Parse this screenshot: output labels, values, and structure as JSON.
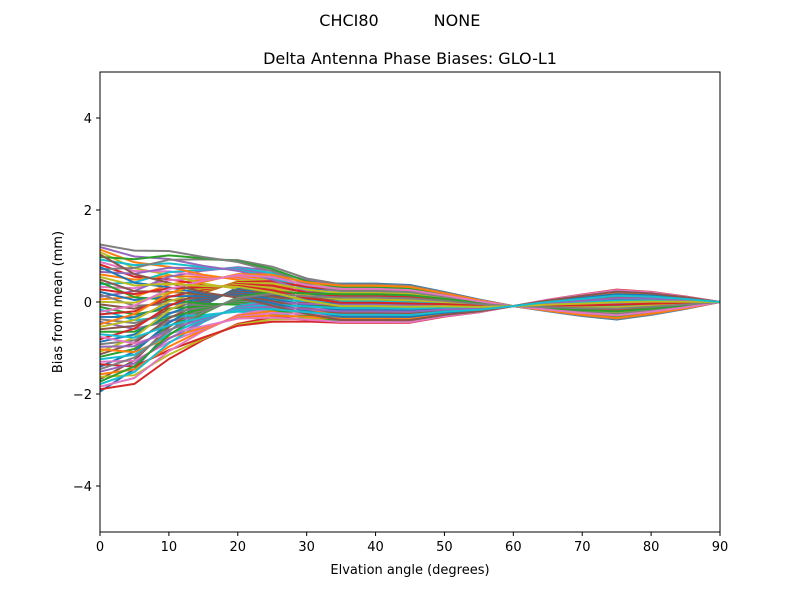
{
  "figure": {
    "suptitle_left": "CHCI80",
    "suptitle_right": "NONE"
  },
  "chart_data": {
    "type": "line",
    "title": "Delta Antenna Phase Biases: GLO-L1",
    "xlabel": "Elvation angle (degrees)",
    "ylabel": "Bias from mean (mm)",
    "xlim": [
      0,
      90
    ],
    "ylim": [
      -5,
      5
    ],
    "xticks": [
      0,
      10,
      20,
      30,
      40,
      50,
      60,
      70,
      80,
      90
    ],
    "yticks": [
      -4,
      -2,
      0,
      2,
      4
    ],
    "ytick_labels": [
      "−4",
      "−2",
      "0",
      "2",
      "4"
    ],
    "grid": false,
    "legend": null,
    "x": [
      0,
      5,
      10,
      15,
      20,
      25,
      30,
      35,
      40,
      45,
      50,
      55,
      60,
      65,
      70,
      75,
      80,
      85,
      90
    ],
    "series_count": 60,
    "palette": [
      "#1f77b4",
      "#ff7f0e",
      "#2ca02c",
      "#d62728",
      "#9467bd",
      "#8c564b",
      "#e377c2",
      "#7f7f7f",
      "#bcbd22",
      "#17becf"
    ],
    "envelope": {
      "upper": [
        1.25,
        1.2,
        1.25,
        1.15,
        1.05,
        0.85,
        0.55,
        0.4,
        0.4,
        0.37,
        0.35,
        0.33,
        0.32,
        0.3,
        0.28,
        0.27,
        0.22,
        0.12,
        0.0
      ],
      "lower": [
        -1.95,
        -1.9,
        -1.4,
        -1.0,
        -0.65,
        -0.5,
        -0.45,
        -0.45,
        -0.45,
        -0.45,
        -0.45,
        -0.5,
        -0.5,
        -0.45,
        -0.42,
        -0.38,
        -0.28,
        -0.15,
        0.0
      ]
    }
  }
}
